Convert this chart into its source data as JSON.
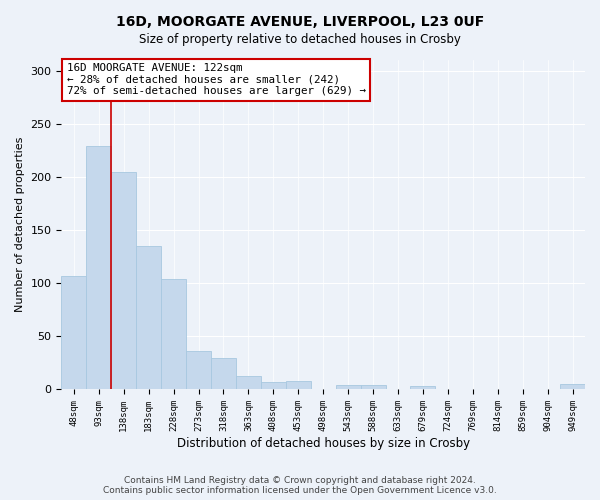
{
  "title1": "16D, MOORGATE AVENUE, LIVERPOOL, L23 0UF",
  "title2": "Size of property relative to detached houses in Crosby",
  "xlabel": "Distribution of detached houses by size in Crosby",
  "ylabel": "Number of detached properties",
  "categories": [
    "48sqm",
    "93sqm",
    "138sqm",
    "183sqm",
    "228sqm",
    "273sqm",
    "318sqm",
    "363sqm",
    "408sqm",
    "453sqm",
    "498sqm",
    "543sqm",
    "588sqm",
    "633sqm",
    "679sqm",
    "724sqm",
    "769sqm",
    "814sqm",
    "859sqm",
    "904sqm",
    "949sqm"
  ],
  "values": [
    107,
    229,
    205,
    135,
    104,
    36,
    30,
    13,
    7,
    8,
    0,
    4,
    4,
    0,
    3,
    0,
    0,
    0,
    0,
    0,
    5
  ],
  "bar_color": "#c5d8ec",
  "bar_edge_color": "#a8c8e0",
  "ylim": [
    0,
    310
  ],
  "yticks": [
    0,
    50,
    100,
    150,
    200,
    250,
    300
  ],
  "property_line_x": 1.5,
  "annotation_line1": "16D MOORGATE AVENUE: 122sqm",
  "annotation_line2": "← 28% of detached houses are smaller (242)",
  "annotation_line3": "72% of semi-detached houses are larger (629) →",
  "annotation_box_color": "white",
  "annotation_box_edge": "#cc0000",
  "property_line_color": "#cc0000",
  "footer": "Contains HM Land Registry data © Crown copyright and database right 2024.\nContains public sector information licensed under the Open Government Licence v3.0.",
  "bg_color": "#edf2f9",
  "grid_color": "white"
}
